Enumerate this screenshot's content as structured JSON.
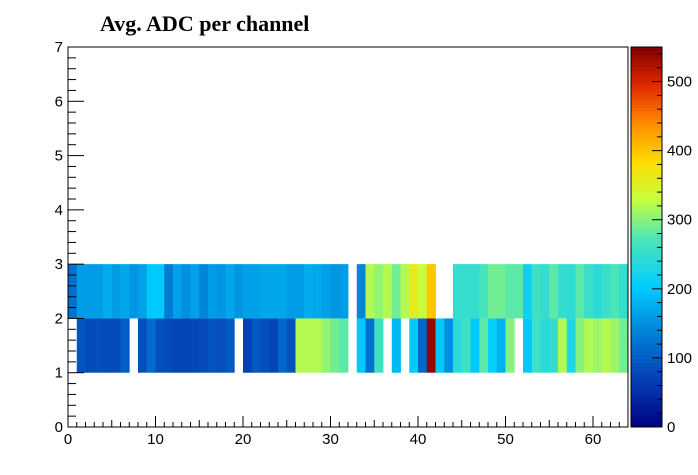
{
  "chart_data": {
    "type": "heatmap",
    "title": "Avg. ADC per channel",
    "xlabel": "",
    "ylabel": "",
    "xlim": [
      0,
      64
    ],
    "ylim": [
      0,
      7
    ],
    "x_ticks": [
      0,
      10,
      20,
      30,
      40,
      50,
      60
    ],
    "y_ticks": [
      0,
      1,
      2,
      3,
      4,
      5,
      6,
      7
    ],
    "zlim": [
      0,
      550
    ],
    "colorbar_ticks": [
      0,
      100,
      200,
      300,
      400,
      500
    ],
    "colormap": "rainbow",
    "bin_width": 1,
    "rows": [
      {
        "y_range": [
          1,
          2
        ],
        "values": [
          null,
          90,
          80,
          85,
          80,
          80,
          100,
          null,
          85,
          115,
          85,
          80,
          75,
          75,
          75,
          80,
          90,
          85,
          95,
          null,
          70,
          95,
          85,
          75,
          110,
          90,
          320,
          320,
          320,
          305,
          290,
          280,
          null,
          200,
          120,
          260,
          null,
          185,
          null,
          200,
          110,
          540,
          200,
          150,
          240,
          260,
          200,
          280,
          210,
          180,
          300,
          null,
          200,
          260,
          240,
          250,
          320,
          230,
          300,
          320,
          310,
          320,
          310,
          290
        ]
      },
      {
        "y_range": [
          2,
          3
        ],
        "values": [
          120,
          160,
          160,
          160,
          175,
          160,
          170,
          155,
          165,
          200,
          200,
          130,
          165,
          150,
          165,
          140,
          160,
          155,
          170,
          155,
          165,
          165,
          170,
          170,
          170,
          160,
          160,
          175,
          170,
          165,
          155,
          160,
          null,
          140,
          320,
          305,
          320,
          290,
          320,
          360,
          330,
          400,
          null,
          null,
          250,
          250,
          250,
          265,
          290,
          290,
          280,
          280,
          215,
          260,
          250,
          280,
          250,
          245,
          280,
          255,
          240,
          255,
          270,
          250
        ]
      }
    ]
  }
}
